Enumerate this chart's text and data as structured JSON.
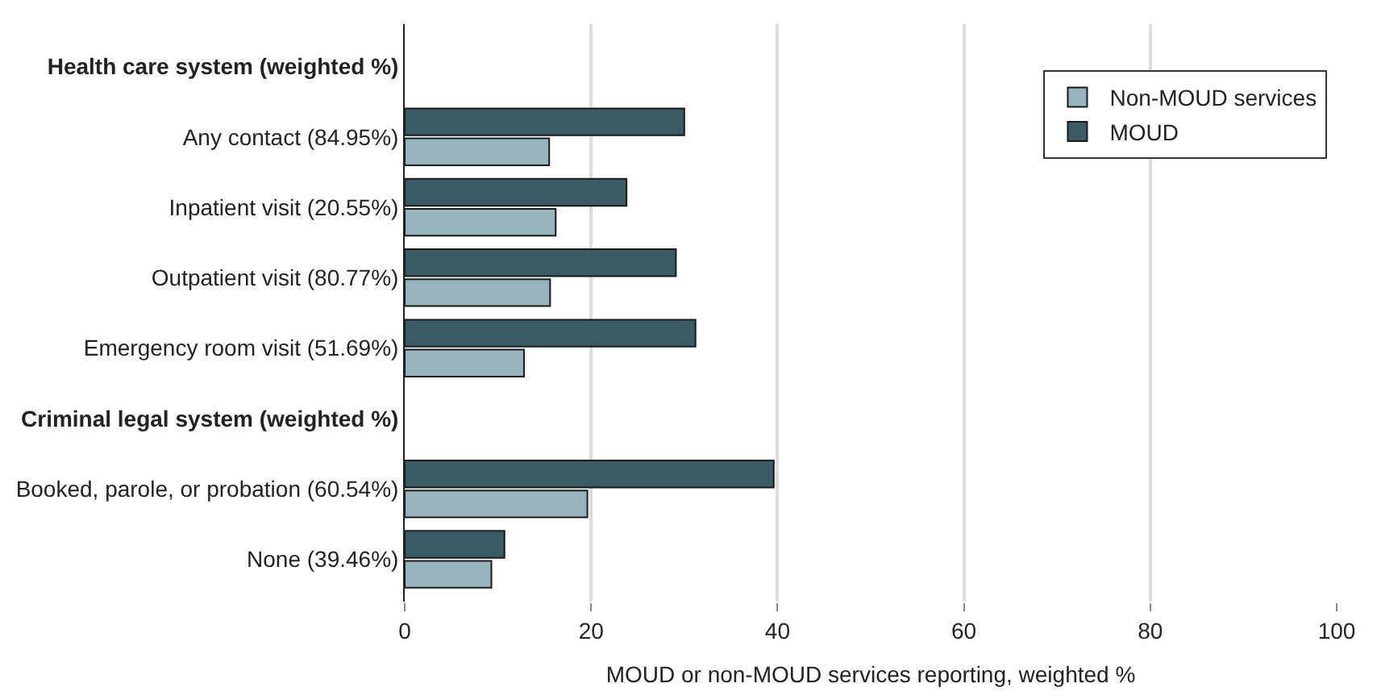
{
  "chart_data": {
    "type": "bar",
    "orientation": "horizontal",
    "categories": [
      "Health care system (weighted %)",
      "Any contact (84.95%)",
      "Inpatient visit (20.55%)",
      "Outpatient visit (80.77%)",
      "Emergency room visit (51.69%)",
      "Criminal legal system (weighted %)",
      "Booked, parole, or probation (60.54%)",
      "None (39.46%)"
    ],
    "series": [
      {
        "name": "Non-MOUD services",
        "color": "#97b3be",
        "values": [
          null,
          15.5,
          16.2,
          15.6,
          12.8,
          null,
          19.6,
          9.3
        ]
      },
      {
        "name": "MOUD",
        "color": "#3a5a66",
        "values": [
          null,
          30.0,
          23.8,
          29.1,
          31.2,
          null,
          39.6,
          10.7
        ]
      }
    ],
    "xlabel": "MOUD or non-MOUD services reporting, weighted %",
    "xlim": [
      0,
      100
    ],
    "xticks": [
      0,
      20,
      40,
      60,
      80,
      100
    ],
    "grid": "x",
    "legend": "top right"
  }
}
